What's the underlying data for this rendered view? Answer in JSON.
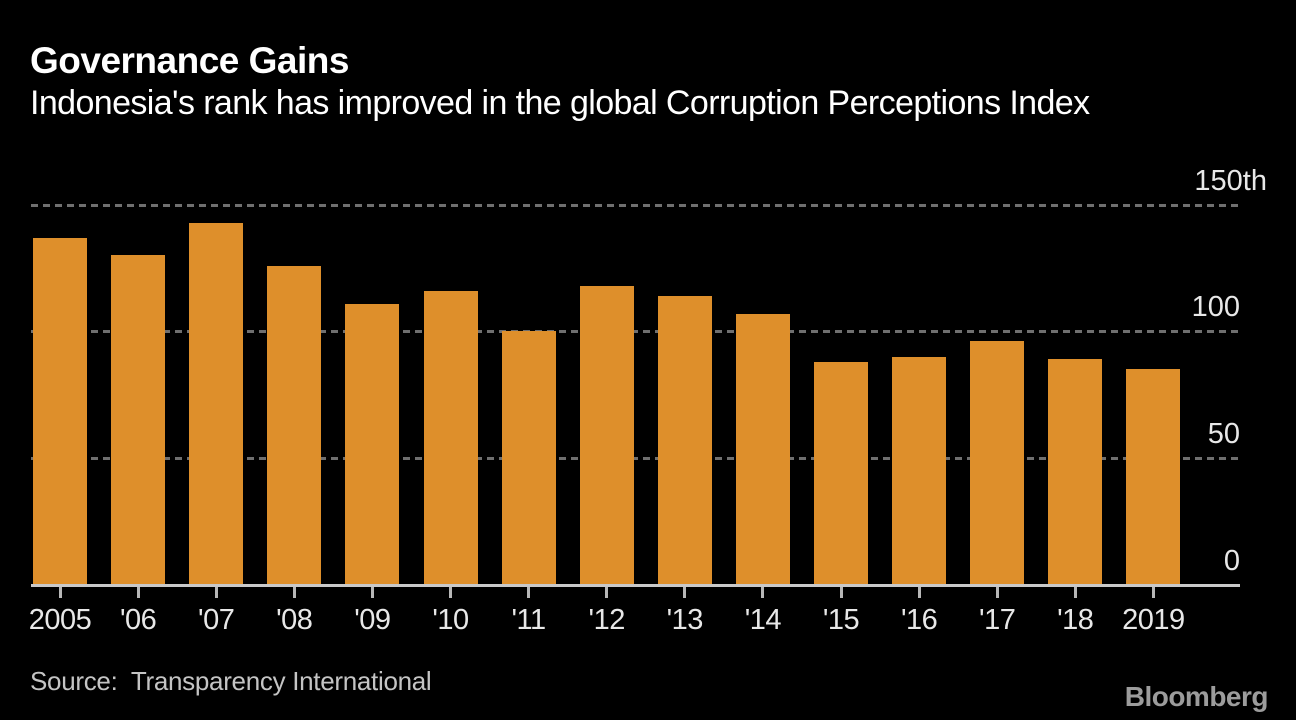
{
  "header": {
    "title": "Governance Gains",
    "subtitle": "Indonesia's rank has improved in the global Corruption Perceptions Index"
  },
  "chart_data": {
    "type": "bar",
    "title": "Governance Gains",
    "subtitle": "Indonesia's rank has improved in the global Corruption Perceptions Index",
    "categories": [
      "2005",
      "'06",
      "'07",
      "'08",
      "'09",
      "'10",
      "'11",
      "'12",
      "'13",
      "'14",
      "'15",
      "'16",
      "'17",
      "'18",
      "2019"
    ],
    "values": [
      137,
      130,
      143,
      126,
      111,
      116,
      100,
      118,
      114,
      107,
      88,
      90,
      96,
      89,
      85
    ],
    "xlabel": "",
    "ylabel": "",
    "ylim": [
      0,
      150
    ],
    "yticks": [
      {
        "value": 0,
        "label": "0"
      },
      {
        "value": 50,
        "label": "50"
      },
      {
        "value": 100,
        "label": "100"
      },
      {
        "value": 150,
        "label": "150th"
      }
    ],
    "grid": "horizontal-dashed",
    "legend": "none",
    "bar_color": "#DE8F2B"
  },
  "source": "Source:  Transparency International",
  "brand": "Bloomberg",
  "colors": {
    "background": "#000000",
    "bar": "#DE8F2B",
    "gridline": "#6F6F6F",
    "axis_line": "#C9C9C9",
    "axis_text": "#E8E8E8",
    "title_text": "#FFFFFF",
    "source_text": "#C4C4C4",
    "brand_text": "#9C9C9C"
  }
}
